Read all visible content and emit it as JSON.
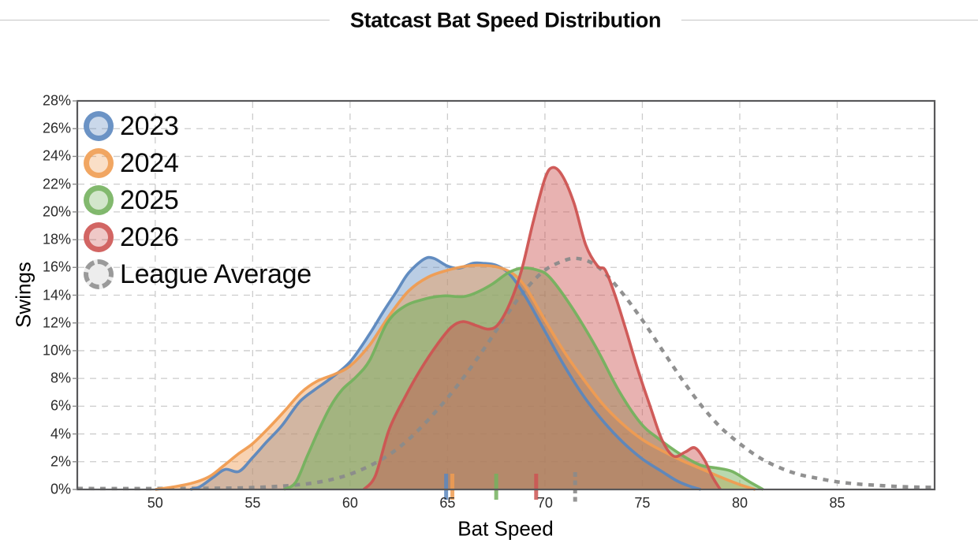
{
  "title": "Statcast Bat Speed Distribution",
  "axes": {
    "x_label": "Bat Speed",
    "y_label": "Swings",
    "x_ticks": [
      {
        "v": 50,
        "label": "50"
      },
      {
        "v": 55,
        "label": "55"
      },
      {
        "v": 60,
        "label": "60"
      },
      {
        "v": 65,
        "label": "65"
      },
      {
        "v": 70,
        "label": "70"
      },
      {
        "v": 75,
        "label": "75"
      },
      {
        "v": 80,
        "label": "80"
      },
      {
        "v": 85,
        "label": "85"
      }
    ],
    "y_ticks": [
      {
        "v": 0,
        "label": "0%"
      },
      {
        "v": 2,
        "label": "2%"
      },
      {
        "v": 4,
        "label": "4%"
      },
      {
        "v": 6,
        "label": "6%"
      },
      {
        "v": 8,
        "label": "8%"
      },
      {
        "v": 10,
        "label": "10%"
      },
      {
        "v": 12,
        "label": "12%"
      },
      {
        "v": 14,
        "label": "14%"
      },
      {
        "v": 16,
        "label": "16%"
      },
      {
        "v": 18,
        "label": "18%"
      },
      {
        "v": 20,
        "label": "20%"
      },
      {
        "v": 22,
        "label": "22%"
      },
      {
        "v": 24,
        "label": "24%"
      },
      {
        "v": 26,
        "label": "26%"
      },
      {
        "v": 28,
        "label": "28%"
      }
    ],
    "x_range": [
      46,
      90
    ],
    "y_range_pct": [
      0,
      28
    ],
    "grid": "dashed"
  },
  "legend": [
    {
      "label": "2023",
      "color": "#5b87be",
      "dashed": false
    },
    {
      "label": "2024",
      "color": "#f09c51",
      "dashed": false
    },
    {
      "label": "2025",
      "color": "#74b25e",
      "dashed": false
    },
    {
      "label": "2026",
      "color": "#cd5452",
      "dashed": false
    },
    {
      "label": "League Average",
      "color": "#999999",
      "dashed": true
    }
  ],
  "chart_data": {
    "type": "area",
    "subtype": "kde-density",
    "title": "Statcast Bat Speed Distribution",
    "xlabel": "Bat Speed",
    "ylabel": "Swings (% of swings)",
    "xlim": [
      46,
      90
    ],
    "ylim_pct": [
      0,
      28
    ],
    "legend_position": "upper-left",
    "series": [
      {
        "name": "2023",
        "color": "#5b87be",
        "fill_alpha": 0.42,
        "dashed": false,
        "mean": 64.93,
        "points": [
          [
            51.8,
            0
          ],
          [
            52.3,
            0.2
          ],
          [
            53,
            0.9
          ],
          [
            53.6,
            1.45
          ],
          [
            54.3,
            1.3
          ],
          [
            55,
            2.3
          ],
          [
            55.7,
            3.4
          ],
          [
            56.5,
            4.6
          ],
          [
            57.4,
            6.3
          ],
          [
            58.2,
            7.2
          ],
          [
            59,
            8.0
          ],
          [
            60,
            9.2
          ],
          [
            61,
            11.2
          ],
          [
            61.7,
            12.8
          ],
          [
            62.4,
            14.3
          ],
          [
            63,
            15.6
          ],
          [
            63.8,
            16.6
          ],
          [
            64.3,
            16.65
          ],
          [
            65,
            16.1
          ],
          [
            65.6,
            15.95
          ],
          [
            66.3,
            16.3
          ],
          [
            66.8,
            16.3
          ],
          [
            67.5,
            16.15
          ],
          [
            68.2,
            15.5
          ],
          [
            69,
            13.9
          ],
          [
            70,
            11.4
          ],
          [
            71,
            8.9
          ],
          [
            72,
            6.7
          ],
          [
            73,
            4.9
          ],
          [
            74,
            3.4
          ],
          [
            75,
            2.2
          ],
          [
            76,
            1.3
          ],
          [
            76.8,
            0.6
          ],
          [
            77.5,
            0.2
          ],
          [
            78,
            0
          ]
        ]
      },
      {
        "name": "2024",
        "color": "#f09c51",
        "fill_alpha": 0.45,
        "dashed": false,
        "mean": 65.25,
        "points": [
          [
            50,
            0
          ],
          [
            51,
            0.2
          ],
          [
            52,
            0.5
          ],
          [
            52.8,
            0.95
          ],
          [
            53.5,
            1.7
          ],
          [
            54.3,
            2.6
          ],
          [
            55,
            3.3
          ],
          [
            55.8,
            4.4
          ],
          [
            56.6,
            5.6
          ],
          [
            57.5,
            7.0
          ],
          [
            58.3,
            7.8
          ],
          [
            59.2,
            8.3
          ],
          [
            60,
            8.9
          ],
          [
            61,
            10.4
          ],
          [
            62,
            12.5
          ],
          [
            63,
            14.3
          ],
          [
            64,
            15.3
          ],
          [
            65,
            15.8
          ],
          [
            66,
            16.1
          ],
          [
            66.7,
            16.15
          ],
          [
            67.5,
            16.05
          ],
          [
            68.3,
            15.6
          ],
          [
            69,
            14.6
          ],
          [
            70,
            12.2
          ],
          [
            71,
            9.9
          ],
          [
            72,
            7.9
          ],
          [
            73,
            6.1
          ],
          [
            74,
            4.7
          ],
          [
            75,
            3.6
          ],
          [
            76,
            2.8
          ],
          [
            77,
            2.1
          ],
          [
            78,
            1.5
          ],
          [
            79,
            0.9
          ],
          [
            80,
            0.35
          ],
          [
            80.8,
            0
          ]
        ]
      },
      {
        "name": "2025",
        "color": "#74b25e",
        "fill_alpha": 0.5,
        "dashed": false,
        "mean": 67.5,
        "points": [
          [
            56.6,
            0
          ],
          [
            57.2,
            0.5
          ],
          [
            57.8,
            2.4
          ],
          [
            58.4,
            4.3
          ],
          [
            59,
            6.0
          ],
          [
            59.6,
            7.2
          ],
          [
            60.3,
            8.1
          ],
          [
            61,
            9.3
          ],
          [
            61.9,
            12.0
          ],
          [
            62.8,
            13.2
          ],
          [
            63.9,
            13.75
          ],
          [
            64.8,
            13.95
          ],
          [
            65.8,
            13.9
          ],
          [
            66.5,
            14.2
          ],
          [
            67.3,
            14.8
          ],
          [
            68.1,
            15.6
          ],
          [
            68.8,
            15.95
          ],
          [
            69.5,
            15.85
          ],
          [
            70.2,
            15.35
          ],
          [
            71.3,
            13.3
          ],
          [
            72.6,
            10.3
          ],
          [
            73.8,
            7.1
          ],
          [
            74.9,
            4.8
          ],
          [
            75.8,
            3.7
          ],
          [
            77,
            2.5
          ],
          [
            78,
            1.75
          ],
          [
            78.8,
            1.55
          ],
          [
            79.6,
            1.3
          ],
          [
            80.5,
            0.55
          ],
          [
            81.2,
            0
          ]
        ]
      },
      {
        "name": "2026",
        "color": "#cd5452",
        "fill_alpha": 0.45,
        "dashed": false,
        "mean": 69.55,
        "points": [
          [
            60.7,
            0
          ],
          [
            61.3,
            1.0
          ],
          [
            62,
            4.3
          ],
          [
            62.8,
            6.6
          ],
          [
            63.6,
            8.6
          ],
          [
            64.5,
            10.5
          ],
          [
            65.2,
            11.7
          ],
          [
            65.8,
            12.1
          ],
          [
            66.5,
            11.8
          ],
          [
            67.1,
            11.55
          ],
          [
            67.6,
            11.9
          ],
          [
            68.2,
            13.4
          ],
          [
            68.8,
            15.8
          ],
          [
            69.4,
            19.3
          ],
          [
            70,
            22.4
          ],
          [
            70.4,
            23.2
          ],
          [
            70.9,
            22.6
          ],
          [
            71.5,
            20.6
          ],
          [
            72.1,
            17.6
          ],
          [
            72.7,
            16.1
          ],
          [
            73.1,
            15.8
          ],
          [
            73.6,
            14.0
          ],
          [
            74.2,
            11.3
          ],
          [
            74.8,
            8.5
          ],
          [
            75.4,
            6.0
          ],
          [
            76,
            3.6
          ],
          [
            76.6,
            2.4
          ],
          [
            77.2,
            2.7
          ],
          [
            77.7,
            3.0
          ],
          [
            78.2,
            2.1
          ],
          [
            78.6,
            0.9
          ],
          [
            79,
            0
          ]
        ]
      },
      {
        "name": "League Average",
        "color": "#8b8b8b",
        "fill_alpha": 0,
        "dashed": true,
        "mean": 71.55,
        "points": [
          [
            46,
            0.07
          ],
          [
            50,
            0.07
          ],
          [
            54,
            0.1
          ],
          [
            56,
            0.2
          ],
          [
            57,
            0.3
          ],
          [
            58,
            0.45
          ],
          [
            59,
            0.7
          ],
          [
            60,
            1.1
          ],
          [
            61,
            1.7
          ],
          [
            62,
            2.5
          ],
          [
            63,
            3.6
          ],
          [
            64,
            5.0
          ],
          [
            65,
            6.6
          ],
          [
            66,
            8.4
          ],
          [
            67,
            10.4
          ],
          [
            68,
            12.5
          ],
          [
            69,
            14.4
          ],
          [
            70,
            15.8
          ],
          [
            71,
            16.5
          ],
          [
            71.6,
            16.65
          ],
          [
            72.3,
            16.4
          ],
          [
            73,
            15.7
          ],
          [
            74,
            14.1
          ],
          [
            75,
            12.2
          ],
          [
            76,
            10.1
          ],
          [
            77,
            8.0
          ],
          [
            78,
            6.1
          ],
          [
            79,
            4.5
          ],
          [
            80,
            3.3
          ],
          [
            81,
            2.3
          ],
          [
            82,
            1.6
          ],
          [
            83,
            1.1
          ],
          [
            84,
            0.8
          ],
          [
            85,
            0.55
          ],
          [
            86,
            0.4
          ],
          [
            87,
            0.3
          ],
          [
            88,
            0.22
          ],
          [
            89,
            0.17
          ],
          [
            90,
            0.15
          ]
        ]
      }
    ],
    "rug_marks_mean": {
      "2023": 64.93,
      "2024": 65.25,
      "2025": 67.5,
      "2026": 69.55,
      "League Average": 71.55
    }
  },
  "style": {
    "grid_color": "#cccccc",
    "border_color": "#58585a",
    "background": "#ffffff"
  }
}
